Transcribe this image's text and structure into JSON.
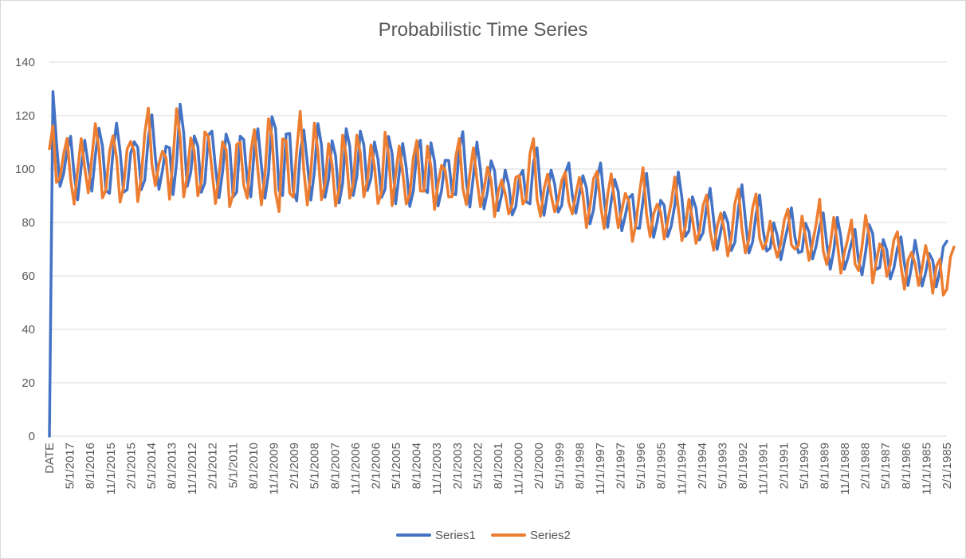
{
  "chart_data": {
    "type": "line",
    "title": "Probabilistic Time Series",
    "ylim": [
      0,
      140
    ],
    "yticks": [
      0,
      20,
      40,
      60,
      80,
      100,
      120,
      140
    ],
    "x_tick_labels": [
      "DATE",
      "5/1/2017",
      "8/1/2016",
      "11/1/2015",
      "2/1/2015",
      "5/1/2014",
      "8/1/2013",
      "11/1/2012",
      "2/1/2012",
      "5/1/2011",
      "8/1/2010",
      "11/1/2009",
      "2/1/2009",
      "5/1/2008",
      "8/1/2007",
      "11/1/2006",
      "2/1/2006",
      "5/1/2005",
      "8/1/2004",
      "11/1/2003",
      "2/1/2003",
      "5/1/2002",
      "8/1/2001",
      "11/1/2000",
      "2/1/2000",
      "5/1/1999",
      "8/1/1998",
      "11/1/1997",
      "2/1/1997",
      "5/1/1996",
      "8/1/1995",
      "11/1/1994",
      "2/1/1994",
      "5/1/1993",
      "8/1/1992",
      "11/1/1991",
      "2/1/1991",
      "5/1/1990",
      "8/1/1989",
      "11/1/1988",
      "2/1/1988",
      "5/1/1987",
      "8/1/1986",
      "11/1/1985",
      "2/1/1985"
    ],
    "grid": true,
    "legend_position": "bottom",
    "series": [
      {
        "name": "Series1",
        "color": "#4472C4",
        "values": [
          0,
          129.0,
          110.0,
          93.5,
          98.2,
          106.7,
          112.3,
          98.0,
          88.5,
          100.9,
          110.8,
          101.5,
          91.7,
          105.1,
          115.3,
          108.7,
          92.0,
          90.9,
          106.4,
          117.2,
          106.7,
          91.3,
          92.3,
          105.9,
          110.2,
          108.2,
          92.3,
          96.0,
          111.7,
          120.3,
          104.1,
          92.4,
          99.5,
          108.5,
          108.0,
          90.4,
          102.6,
          124.3,
          113.6,
          93.5,
          98.7,
          112.4,
          108.6,
          91.3,
          94.9,
          112.7,
          114.2,
          100.6,
          89.3,
          98.8,
          113.1,
          108.9,
          89.6,
          91.4,
          112.3,
          111.0,
          95.6,
          89.6,
          107.6,
          115.1,
          101.3,
          89.1,
          98.4,
          119.6,
          115.2,
          92.0,
          90.1,
          113.1,
          113.3,
          91.6,
          88.1,
          106.4,
          114.6,
          102.2,
          88.4,
          99.2,
          117.0,
          109.0,
          89.4,
          96.1,
          110.6,
          104.9,
          87.3,
          94.8,
          115.1,
          108.5,
          90.1,
          97.2,
          114.2,
          109.0,
          92.0,
          96.5,
          110.1,
          103.5,
          89.4,
          92.4,
          112.2,
          105.7,
          87.0,
          98.4,
          109.6,
          100.4,
          86.0,
          91.9,
          106.7,
          110.8,
          92.5,
          91.2,
          109.8,
          102.8,
          86.2,
          92.1,
          103.3,
          103.2,
          90.9,
          90.4,
          107.6,
          114.0,
          95.1,
          85.8,
          97.5,
          110.1,
          99.7,
          85.1,
          91.7,
          103.1,
          99.3,
          84.4,
          90.3,
          99.6,
          94.0,
          82.8,
          86.0,
          97.2,
          99.5,
          87.7,
          87.0,
          102.5,
          108.0,
          91.7,
          82.7,
          91.4,
          99.6,
          94.4,
          83.9,
          86.4,
          98.4,
          102.3,
          90.0,
          83.5,
          90.7,
          97.5,
          92.9,
          79.5,
          84.8,
          96.4,
          102.3,
          88.4,
          78.2,
          87.9,
          96.1,
          91.5,
          76.9,
          82.7,
          89.2,
          90.5,
          78.0,
          77.8,
          88.1,
          98.4,
          86.0,
          74.4,
          80.3,
          88.3,
          86.4,
          74.7,
          78.7,
          86.6,
          98.9,
          89.3,
          74.8,
          76.8,
          89.6,
          85.3,
          73.5,
          76.2,
          86.0,
          92.8,
          80.8,
          69.9,
          76.7,
          83.8,
          80.0,
          69.5,
          72.6,
          85.4,
          94.1,
          80.8,
          68.6,
          72.6,
          83.1,
          90.3,
          77.1,
          69.3,
          70.4,
          79.9,
          75.1,
          66.1,
          72.6,
          78.4,
          85.5,
          74.5,
          68.7,
          69.2,
          79.7,
          76.4,
          66.4,
          71.2,
          78.5,
          83.6,
          72.1,
          62.5,
          69.6,
          81.9,
          74.5,
          62.5,
          66.9,
          72.4,
          77.4,
          65.8,
          60.4,
          69.0,
          79.2,
          75.9,
          62.4,
          63.1,
          73.6,
          69.6,
          58.9,
          62.9,
          70.3,
          74.6,
          64.5,
          56.4,
          63.5,
          73.3,
          65.7,
          56.2,
          61.3,
          68.4,
          65.8,
          55.9,
          61.9,
          71.0,
          73.0
        ]
      },
      {
        "name": "Series2",
        "color": "#ED7D31",
        "values": [
          107.6,
          116.2,
          95.0,
          96.8,
          105.5,
          111.5,
          96.1,
          86.9,
          99.8,
          111.4,
          100.4,
          91.1,
          104.2,
          117.0,
          107.5,
          89.2,
          92.2,
          106.5,
          112.5,
          104.3,
          87.6,
          93.4,
          107.5,
          110.3,
          106.6,
          87.8,
          96.8,
          113.5,
          122.8,
          101.8,
          93.8,
          102.0,
          106.7,
          104.3,
          88.7,
          104.2,
          122.6,
          111.7,
          89.6,
          97.5,
          111.6,
          106.5,
          90.0,
          95.2,
          113.9,
          112.1,
          99.6,
          87.1,
          97.6,
          110.2,
          107.3,
          85.9,
          90.5,
          109.2,
          110.0,
          94.0,
          89.1,
          106.4,
          114.8,
          99.5,
          86.6,
          97.8,
          118.8,
          112.1,
          91.2,
          84.1,
          111.3,
          110.6,
          91.0,
          89.5,
          107.2,
          121.6,
          99.6,
          86.6,
          99.2,
          117.2,
          106.5,
          88.5,
          94.3,
          109.5,
          101.6,
          86.2,
          92.3,
          112.7,
          105.1,
          89.1,
          94.5,
          112.7,
          105.9,
          89.6,
          95.8,
          109.0,
          101.0,
          87.1,
          91.2,
          113.8,
          105.3,
          86.3,
          98.0,
          108.6,
          98.5,
          86.9,
          90.5,
          104.3,
          110.7,
          91.8,
          91.7,
          108.6,
          100.8,
          84.9,
          94.6,
          101.4,
          99.5,
          89.6,
          89.7,
          104.5,
          111.4,
          92.9,
          86.7,
          98.3,
          108.0,
          96.0,
          85.9,
          92.5,
          100.7,
          95.7,
          82.2,
          91.5,
          95.9,
          90.8,
          83.2,
          86.9,
          96.9,
          97.6,
          86.9,
          88.9,
          105.8,
          111.4,
          88.8,
          82.3,
          92.7,
          98.1,
          90.2,
          84.0,
          88.4,
          95.7,
          98.9,
          87.5,
          83.2,
          90.7,
          96.9,
          90.3,
          78.1,
          86.1,
          96.4,
          99.1,
          86.5,
          77.7,
          90.4,
          98.2,
          87.6,
          78.1,
          84.7,
          90.9,
          87.8,
          72.9,
          79.6,
          90.9,
          100.5,
          83.1,
          74.7,
          83.2,
          86.8,
          83.9,
          73.8,
          80.6,
          87.5,
          97.0,
          85.1,
          73.2,
          78.5,
          88.7,
          81.2,
          72.2,
          76.9,
          86.4,
          90.3,
          76.7,
          69.6,
          78.6,
          83.5,
          77.1,
          67.5,
          74.2,
          87.2,
          92.5,
          77.5,
          68.6,
          74.0,
          85.3,
          90.7,
          74.0,
          70.0,
          73.1,
          80.5,
          72.2,
          67.0,
          72.1,
          81.0,
          85.0,
          71.6,
          70.0,
          71.4,
          82.4,
          74.4,
          65.8,
          72.4,
          79.4,
          88.7,
          69.4,
          64.3,
          71.6,
          81.9,
          72.3,
          61.0,
          68.6,
          74.1,
          80.9,
          64.5,
          62.0,
          71.2,
          82.7,
          75.1,
          57.4,
          65.2,
          72.0,
          69.7,
          59.8,
          64.4,
          73.4,
          76.5,
          63.8,
          55.0,
          65.9,
          68.8,
          64.6,
          56.4,
          63.2,
          71.4,
          65.1,
          53.5,
          63.4,
          66.2,
          52.8,
          55.1,
          67.0,
          70.8
        ]
      }
    ]
  }
}
